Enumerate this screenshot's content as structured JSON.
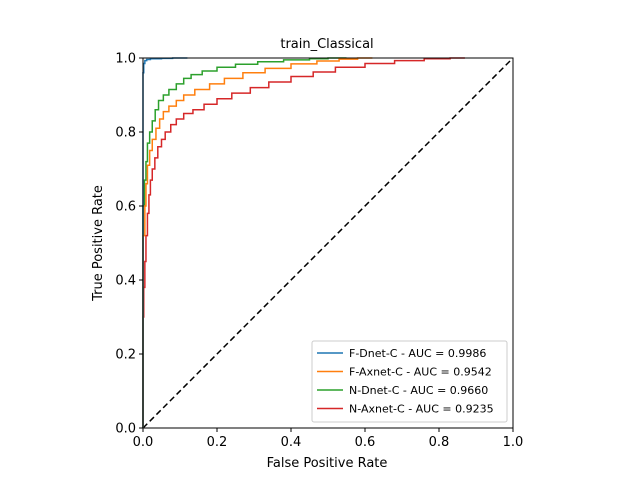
{
  "chart_data": {
    "type": "line",
    "title": "train_Classical",
    "xlabel": "False Positive Rate",
    "ylabel": "True Positive Rate",
    "xlim": [
      0.0,
      1.0
    ],
    "ylim": [
      0.0,
      1.0
    ],
    "xticks": [
      "0.0",
      "0.2",
      "0.4",
      "0.6",
      "0.8",
      "1.0"
    ],
    "yticks": [
      "0.0",
      "0.2",
      "0.4",
      "0.6",
      "0.8",
      "1.0"
    ],
    "grid": false,
    "legend_position": "lower-right",
    "series": [
      {
        "name": "F-Dnet-C - AUC = 0.9986",
        "color": "#1f77b4",
        "x": [
          0.0,
          0.0,
          0.002,
          0.002,
          0.005,
          0.005,
          0.01,
          0.02,
          0.05,
          0.08,
          0.12
        ],
        "y": [
          0.0,
          0.95,
          0.96,
          0.985,
          0.985,
          0.99,
          0.993,
          0.996,
          0.998,
          0.999,
          1.0
        ]
      },
      {
        "name": "F-Axnet-C - AUC = 0.9542",
        "color": "#ff7f0e",
        "x": [
          0.0,
          0.0,
          0.005,
          0.008,
          0.012,
          0.018,
          0.025,
          0.035,
          0.045,
          0.055,
          0.07,
          0.09,
          0.11,
          0.14,
          0.18,
          0.22,
          0.27,
          0.33,
          0.4,
          0.47,
          0.53,
          0.58,
          0.62
        ],
        "y": [
          0.0,
          0.45,
          0.52,
          0.6,
          0.66,
          0.71,
          0.75,
          0.78,
          0.81,
          0.835,
          0.855,
          0.87,
          0.885,
          0.9,
          0.915,
          0.93,
          0.945,
          0.96,
          0.972,
          0.984,
          0.992,
          0.997,
          1.0
        ]
      },
      {
        "name": "N-Dnet-C - AUC = 0.9660",
        "color": "#2ca02c",
        "x": [
          0.0,
          0.0,
          0.004,
          0.008,
          0.012,
          0.018,
          0.025,
          0.033,
          0.042,
          0.055,
          0.07,
          0.09,
          0.11,
          0.13,
          0.16,
          0.2,
          0.25,
          0.31,
          0.38,
          0.45,
          0.5,
          0.55
        ],
        "y": [
          0.0,
          0.52,
          0.6,
          0.67,
          0.72,
          0.77,
          0.8,
          0.83,
          0.86,
          0.885,
          0.9,
          0.915,
          0.93,
          0.945,
          0.955,
          0.965,
          0.975,
          0.983,
          0.99,
          0.995,
          0.998,
          1.0
        ]
      },
      {
        "name": "N-Axnet-C - AUC = 0.9235",
        "color": "#d62728",
        "x": [
          0.0,
          0.0,
          0.002,
          0.005,
          0.008,
          0.012,
          0.016,
          0.02,
          0.025,
          0.032,
          0.04,
          0.05,
          0.06,
          0.075,
          0.09,
          0.11,
          0.135,
          0.165,
          0.2,
          0.24,
          0.29,
          0.34,
          0.4,
          0.46,
          0.52,
          0.6,
          0.68,
          0.76,
          0.83,
          0.87
        ],
        "y": [
          0.0,
          0.08,
          0.3,
          0.38,
          0.45,
          0.52,
          0.58,
          0.63,
          0.67,
          0.7,
          0.73,
          0.76,
          0.78,
          0.8,
          0.82,
          0.835,
          0.85,
          0.86,
          0.875,
          0.89,
          0.905,
          0.92,
          0.935,
          0.95,
          0.962,
          0.975,
          0.985,
          0.993,
          0.998,
          1.0
        ]
      }
    ],
    "diagonal": {
      "x": [
        0.0,
        1.0
      ],
      "y": [
        0.0,
        1.0
      ],
      "style": "dashed",
      "color": "#000000"
    }
  }
}
